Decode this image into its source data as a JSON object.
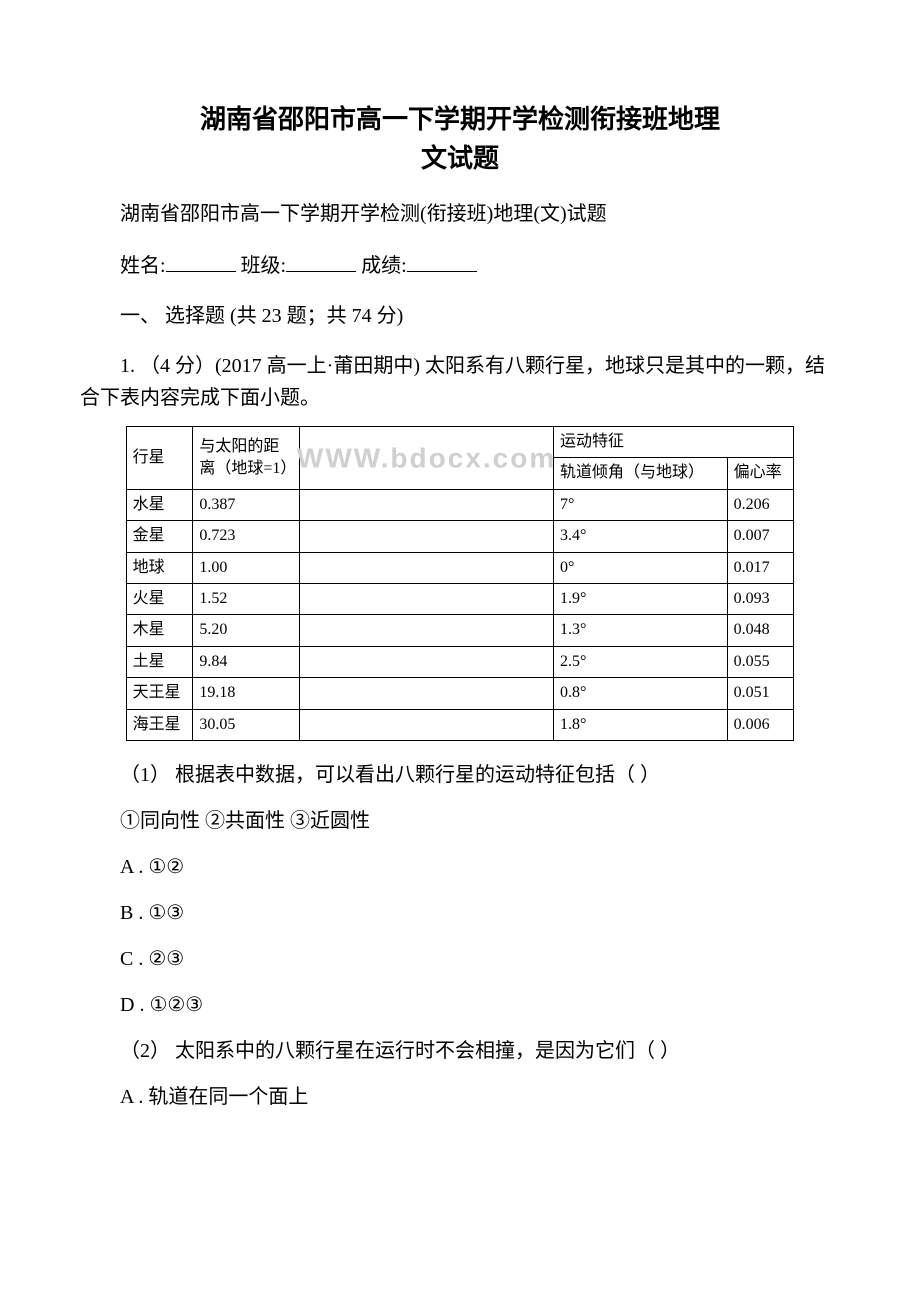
{
  "title_line1": "湖南省邵阳市高一下学期开学检测衔接班地理",
  "title_line2": "文试题",
  "title_fontsize": 26,
  "subtitle": "湖南省邵阳市高一下学期开学检测(衔接班)地理(文)试题",
  "body_fontsize": 20,
  "form": {
    "name_label": "姓名:",
    "class_label": "班级:",
    "score_label": "成绩:"
  },
  "section_header": "一、 选择题 (共 23 题；共 74 分)",
  "question1": {
    "stem": "1. （4 分）(2017 高一上·莆田期中) 太阳系有八颗行星，地球只是其中的一颗，结合下表内容完成下面小题。",
    "table": {
      "header1_planet": "行星",
      "header1_distance": "与太阳的距离（地球=1）",
      "header1_motion": "运动特征",
      "header2_angle": "轨道倾角（与地球）",
      "header2_ecc": "偏心率",
      "rows": [
        {
          "planet": "水星",
          "distance": "0.387",
          "angle": "7°",
          "ecc": "0.206"
        },
        {
          "planet": "金星",
          "distance": "0.723",
          "angle": "3.4°",
          "ecc": "0.007"
        },
        {
          "planet": "地球",
          "distance": "1.00",
          "angle": "0°",
          "ecc": "0.017"
        },
        {
          "planet": "火星",
          "distance": "1.52",
          "angle": "1.9°",
          "ecc": "0.093"
        },
        {
          "planet": "木星",
          "distance": "5.20",
          "angle": "1.3°",
          "ecc": "0.048"
        },
        {
          "planet": "土星",
          "distance": "9.84",
          "angle": "2.5°",
          "ecc": "0.055"
        },
        {
          "planet": "天王星",
          "distance": "19.18",
          "angle": "0.8°",
          "ecc": "0.051"
        },
        {
          "planet": "海王星",
          "distance": "30.05",
          "angle": "1.8°",
          "ecc": "0.006"
        }
      ],
      "table_fontsize": 16,
      "border_color": "#000000",
      "watermark_text": "WWW.bdocx.com"
    },
    "sub1": "（1） 根据表中数据，可以看出八颗行星的运动特征包括（ ）",
    "choices_line": "①同向性  ②共面性  ③近圆性",
    "options1": {
      "A": "A . ①②",
      "B": "B . ①③",
      "C": "C . ②③",
      "D": "D . ①②③"
    },
    "sub2": "（2） 太阳系中的八颗行星在运行时不会相撞，是因为它们（ ）",
    "options2": {
      "A": "A . 轨道在同一个面上"
    }
  }
}
